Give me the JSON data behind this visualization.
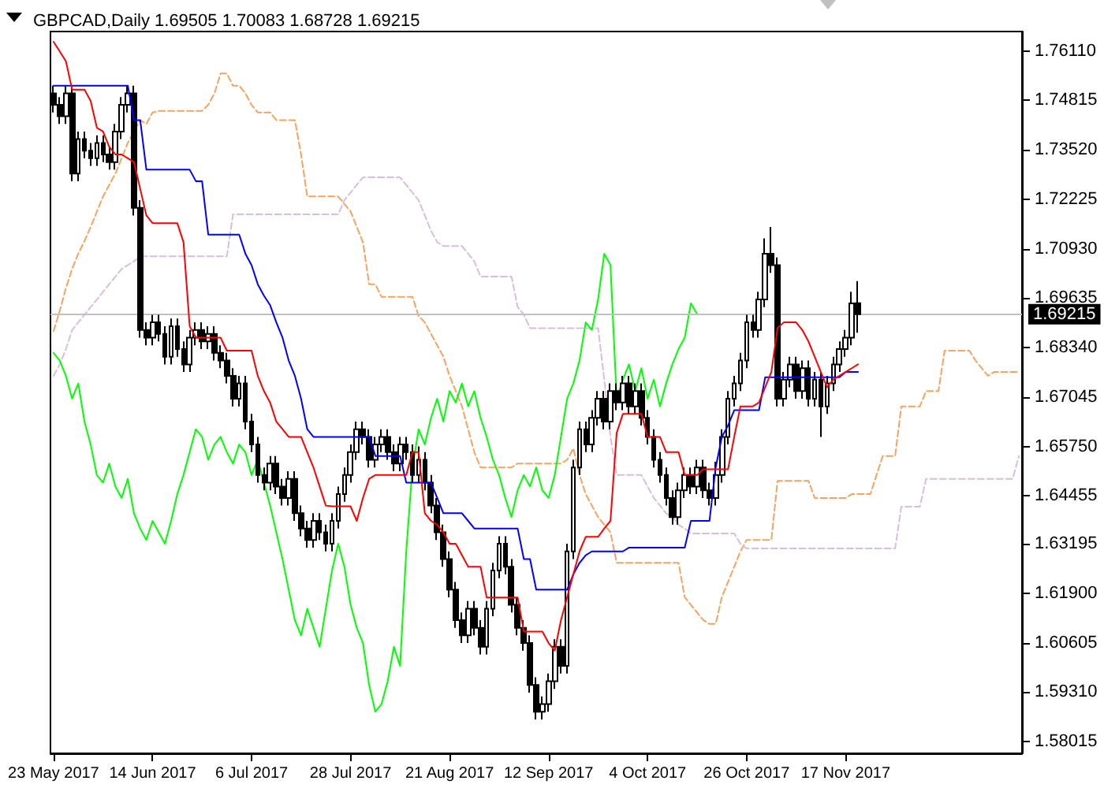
{
  "chart_data": {
    "type": "candlestick",
    "title": "GBPCAD,Daily 1.69505 1.70083 1.68728 1.69215",
    "categories": [
      "23 May 2017",
      null,
      null,
      null,
      null,
      null,
      null,
      null,
      null,
      null,
      null,
      null,
      null,
      null,
      null,
      null,
      "14 Jun 2017",
      null,
      null,
      null,
      null,
      null,
      null,
      null,
      null,
      null,
      null,
      null,
      null,
      null,
      null,
      null,
      "6 Jul 2017",
      null,
      null,
      null,
      null,
      null,
      null,
      null,
      null,
      null,
      null,
      null,
      null,
      null,
      null,
      null,
      "28 Jul 2017",
      null,
      null,
      null,
      null,
      null,
      null,
      null,
      null,
      null,
      null,
      null,
      null,
      null,
      null,
      null,
      "21 Aug 2017",
      null,
      null,
      null,
      null,
      null,
      null,
      null,
      null,
      null,
      null,
      null,
      null,
      null,
      null,
      null,
      "12 Sep 2017",
      null,
      null,
      null,
      null,
      null,
      null,
      null,
      null,
      null,
      null,
      null,
      null,
      null,
      null,
      null,
      "4 Oct 2017",
      null,
      null,
      null,
      null,
      null,
      null,
      null,
      null,
      null,
      null,
      null,
      null,
      null,
      null,
      null,
      "26 Oct 2017",
      null,
      null,
      null,
      null,
      null,
      null,
      null,
      null,
      null,
      null,
      null,
      null,
      null,
      null,
      null,
      "17 Nov 2017",
      null,
      null,
      null,
      null,
      null,
      null,
      null,
      null,
      null,
      null,
      null,
      null,
      null,
      null,
      null,
      null,
      null,
      null,
      null,
      null,
      null,
      null,
      null,
      null,
      null,
      null,
      null,
      null
    ],
    "ylim": [
      1.5771,
      1.7662
    ],
    "yticks": [
      1.58015,
      {
        "value": 1.5931,
        "label": "1.59310"
      },
      1.60605,
      {
        "value": 1.619,
        "label": "1.61900"
      },
      1.63195,
      1.64455,
      {
        "value": 1.6575,
        "label": "1.65750"
      },
      1.67045,
      {
        "value": 1.6834,
        "label": "1.68340"
      },
      1.69635,
      {
        "value": 1.7093,
        "label": "1.70930"
      },
      1.72225,
      {
        "value": 1.7352,
        "label": "1.73520"
      },
      1.74815,
      {
        "value": 1.7611,
        "label": "1.76110"
      }
    ],
    "grid": false,
    "marker": "none",
    "ref_lines": [
      {
        "axis": "y",
        "value": 1.69215,
        "label": "1.69215",
        "color": "#c0c0c0"
      }
    ],
    "series": [
      {
        "type": "line",
        "color": "#f4a460",
        "line_style": "dashed",
        "values": [
          1.6877,
          1.693,
          1.699,
          1.704,
          1.708,
          1.7113,
          1.715,
          1.719,
          1.723,
          1.726,
          1.729,
          1.733,
          1.737,
          1.74,
          1.743,
          1.742,
          1.745,
          1.7454,
          1.7454,
          1.7454,
          1.7454,
          1.7454,
          1.7454,
          1.7454,
          1.7454,
          1.747,
          1.75,
          1.7552,
          1.7552,
          1.752,
          1.752,
          1.75,
          1.747,
          1.745,
          1.745,
          1.745,
          1.743,
          1.743,
          1.743,
          1.743,
          1.734,
          1.723,
          1.723,
          1.723,
          1.723,
          1.723,
          1.723,
          1.721,
          1.7191,
          1.715,
          1.711,
          1.7,
          1.7,
          1.6967,
          1.6967,
          1.6967,
          1.6967,
          1.6967,
          1.6967,
          1.6916,
          1.69,
          1.687,
          1.684,
          1.681,
          1.676,
          1.672,
          1.668,
          1.662,
          1.656,
          1.652,
          1.652,
          1.652,
          1.652,
          1.652,
          1.652,
          1.653,
          1.653,
          1.653,
          1.653,
          1.653,
          1.653,
          1.653,
          1.653,
          1.654,
          1.657,
          1.65,
          1.645,
          1.642,
          1.639,
          1.637,
          1.635,
          1.627,
          1.627,
          1.627,
          1.627,
          1.627,
          1.627,
          1.627,
          1.627,
          1.627,
          1.627,
          1.627,
          1.618,
          1.616,
          1.614,
          1.612,
          1.611,
          1.611,
          1.618,
          1.622,
          1.626,
          1.63,
          1.633,
          1.633,
          1.633,
          1.633,
          1.633,
          1.6485,
          1.6485,
          1.6485,
          1.6485,
          1.6485,
          1.6485,
          1.644,
          1.644,
          1.644,
          1.644,
          1.644,
          1.644,
          1.645,
          1.645,
          1.645,
          1.645,
          1.65,
          1.655,
          1.655,
          1.655,
          1.668,
          1.668,
          1.668,
          1.668,
          1.672,
          1.672,
          1.672,
          1.6826,
          1.6826,
          1.6826,
          1.6826,
          1.6826,
          1.68,
          1.678,
          1.676,
          1.677,
          1.677,
          1.677,
          1.677,
          1.677
        ]
      },
      {
        "type": "line",
        "color": "#d8bfd8",
        "line_style": "dashed",
        "values": [
          1.676,
          1.679,
          1.683,
          1.688,
          1.69,
          1.692,
          1.694,
          1.696,
          1.698,
          1.7,
          1.702,
          1.704,
          1.705,
          1.706,
          1.7073,
          1.7073,
          1.7073,
          1.7073,
          1.7073,
          1.7073,
          1.7073,
          1.7073,
          1.7073,
          1.7073,
          1.7073,
          1.7073,
          1.7073,
          1.7073,
          1.7073,
          1.7183,
          1.7183,
          1.7183,
          1.7183,
          1.7183,
          1.7183,
          1.7183,
          1.7183,
          1.7183,
          1.7183,
          1.7183,
          1.7183,
          1.7183,
          1.7183,
          1.7183,
          1.7183,
          1.7183,
          1.7183,
          1.722,
          1.724,
          1.726,
          1.728,
          1.728,
          1.728,
          1.728,
          1.728,
          1.728,
          1.728,
          1.726,
          1.724,
          1.722,
          1.718,
          1.714,
          1.711,
          1.71,
          1.71,
          1.71,
          1.71,
          1.708,
          1.706,
          1.702,
          1.702,
          1.702,
          1.702,
          1.702,
          1.702,
          1.694,
          1.692,
          1.6885,
          1.6885,
          1.6885,
          1.6885,
          1.6885,
          1.6885,
          1.6885,
          1.6885,
          1.6885,
          1.6885,
          1.6885,
          1.6885,
          1.675,
          1.66,
          1.65,
          1.65,
          1.65,
          1.65,
          1.65,
          1.647,
          1.644,
          1.642,
          1.64,
          1.639,
          1.637,
          1.636,
          1.6347,
          1.6347,
          1.6347,
          1.6347,
          1.6347,
          1.6347,
          1.6347,
          1.6347,
          1.632,
          1.6308,
          1.6308,
          1.6308,
          1.6308,
          1.6308,
          1.6308,
          1.6308,
          1.6308,
          1.6308,
          1.6308,
          1.6308,
          1.6308,
          1.6308,
          1.6308,
          1.6308,
          1.6308,
          1.6308,
          1.6308,
          1.6308,
          1.6308,
          1.6308,
          1.6308,
          1.6308,
          1.6308,
          1.6308,
          1.6417,
          1.6417,
          1.6417,
          1.6417,
          1.649,
          1.649,
          1.649,
          1.649,
          1.649,
          1.649,
          1.649,
          1.649,
          1.649,
          1.649,
          1.649,
          1.649,
          1.649,
          1.649,
          1.649,
          1.655
        ]
      },
      {
        "type": "line",
        "color": "#00ff00",
        "line_style": "solid",
        "values": [
          1.682,
          1.68,
          1.676,
          1.67,
          1.674,
          1.664,
          1.658,
          1.65,
          1.648,
          1.653,
          1.647,
          1.644,
          1.649,
          1.64,
          1.636,
          1.633,
          1.638,
          1.635,
          1.632,
          1.638,
          1.645,
          1.65,
          1.656,
          1.662,
          1.66,
          1.654,
          1.658,
          1.66,
          1.656,
          1.653,
          1.658,
          1.656,
          1.65,
          1.654,
          1.648,
          1.642,
          1.635,
          1.628,
          1.62,
          1.612,
          1.608,
          1.615,
          1.61,
          1.605,
          1.615,
          1.625,
          1.632,
          1.626,
          1.616,
          1.61,
          1.606,
          1.595,
          1.588,
          1.59,
          1.596,
          1.605,
          1.6,
          1.63,
          1.652,
          1.662,
          1.658,
          1.665,
          1.67,
          1.664,
          1.672,
          1.669,
          1.674,
          1.668,
          1.672,
          1.665,
          1.66,
          1.654,
          1.65,
          1.644,
          1.639,
          1.646,
          1.65,
          1.647,
          1.652,
          1.646,
          1.644,
          1.65,
          1.66,
          1.67,
          1.674,
          1.68,
          1.69,
          1.688,
          1.696,
          1.708,
          1.705,
          1.67,
          1.675,
          1.679,
          1.672,
          1.678,
          1.67,
          1.675,
          1.668,
          1.674,
          1.679,
          1.683,
          1.686,
          1.695,
          1.6922,
          null,
          null,
          null,
          null,
          null,
          null,
          null,
          null,
          null,
          null,
          null,
          null,
          null,
          null,
          null,
          null,
          null,
          null,
          null,
          null,
          null,
          null,
          null,
          null,
          null,
          null,
          null,
          null,
          null,
          null,
          null,
          null,
          null,
          null,
          null,
          null,
          null,
          null,
          null,
          null,
          null,
          null,
          null,
          null,
          null,
          null,
          null,
          null,
          null,
          null,
          null,
          null
        ]
      },
      {
        "color": "#000000",
        "ohlc": [
          [
            1.75,
            1.752,
            1.745,
            1.747
          ],
          [
            1.747,
            1.749,
            1.742,
            1.744
          ],
          [
            1.744,
            1.752,
            1.742,
            1.75
          ],
          [
            1.75,
            1.752,
            1.727,
            1.729
          ],
          [
            1.729,
            1.74,
            1.727,
            1.738
          ],
          [
            1.738,
            1.74,
            1.733,
            1.735
          ],
          [
            1.735,
            1.737,
            1.731,
            1.733
          ],
          [
            1.733,
            1.739,
            1.731,
            1.737
          ],
          [
            1.737,
            1.739,
            1.732,
            1.734
          ],
          [
            1.734,
            1.736,
            1.73,
            1.732
          ],
          [
            1.732,
            1.742,
            1.73,
            1.74
          ],
          [
            1.74,
            1.749,
            1.738,
            1.747
          ],
          [
            1.747,
            1.752,
            1.745,
            1.75
          ],
          [
            1.75,
            1.752,
            1.718,
            1.72
          ],
          [
            1.72,
            1.722,
            1.686,
            1.688
          ],
          [
            1.688,
            1.69,
            1.684,
            1.686
          ],
          [
            1.686,
            1.692,
            1.684,
            1.69
          ],
          [
            1.69,
            1.692,
            1.685,
            1.687
          ],
          [
            1.687,
            1.689,
            1.679,
            1.681
          ],
          [
            1.681,
            1.691,
            1.679,
            1.689
          ],
          [
            1.689,
            1.691,
            1.681,
            1.683
          ],
          [
            1.683,
            1.685,
            1.677,
            1.679
          ],
          [
            1.679,
            1.688,
            1.677,
            1.686
          ],
          [
            1.686,
            1.69,
            1.684,
            1.688
          ],
          [
            1.688,
            1.69,
            1.683,
            1.685
          ],
          [
            1.685,
            1.689,
            1.683,
            1.687
          ],
          [
            1.687,
            1.689,
            1.68,
            1.682
          ],
          [
            1.682,
            1.684,
            1.678,
            1.68
          ],
          [
            1.68,
            1.682,
            1.674,
            1.676
          ],
          [
            1.676,
            1.678,
            1.668,
            1.67
          ],
          [
            1.67,
            1.676,
            1.668,
            1.674
          ],
          [
            1.674,
            1.676,
            1.662,
            1.664
          ],
          [
            1.664,
            1.666,
            1.656,
            1.658
          ],
          [
            1.658,
            1.66,
            1.648,
            1.65
          ],
          [
            1.65,
            1.652,
            1.646,
            1.648
          ],
          [
            1.648,
            1.655,
            1.646,
            1.653
          ],
          [
            1.653,
            1.655,
            1.645,
            1.647
          ],
          [
            1.647,
            1.649,
            1.642,
            1.644
          ],
          [
            1.644,
            1.651,
            1.642,
            1.649
          ],
          [
            1.649,
            1.651,
            1.638,
            1.64
          ],
          [
            1.64,
            1.642,
            1.634,
            1.636
          ],
          [
            1.636,
            1.638,
            1.631,
            1.633
          ],
          [
            1.633,
            1.64,
            1.631,
            1.638
          ],
          [
            1.638,
            1.64,
            1.633,
            1.635
          ],
          [
            1.635,
            1.637,
            1.63,
            1.632
          ],
          [
            1.632,
            1.64,
            1.63,
            1.638
          ],
          [
            1.638,
            1.647,
            1.636,
            1.645
          ],
          [
            1.645,
            1.652,
            1.643,
            1.65
          ],
          [
            1.65,
            1.658,
            1.648,
            1.656
          ],
          [
            1.656,
            1.664,
            1.654,
            1.662
          ],
          [
            1.662,
            1.664,
            1.658,
            1.66
          ],
          [
            1.66,
            1.662,
            1.652,
            1.654
          ],
          [
            1.654,
            1.66,
            1.652,
            1.658
          ],
          [
            1.658,
            1.662,
            1.656,
            1.66
          ],
          [
            1.66,
            1.662,
            1.654,
            1.656
          ],
          [
            1.656,
            1.658,
            1.651,
            1.653
          ],
          [
            1.653,
            1.66,
            1.651,
            1.658
          ],
          [
            1.658,
            1.66,
            1.654,
            1.656
          ],
          [
            1.656,
            1.658,
            1.648,
            1.65
          ],
          [
            1.65,
            1.6575,
            1.648,
            1.654
          ],
          [
            1.654,
            1.656,
            1.646,
            1.648
          ],
          [
            1.648,
            1.65,
            1.64,
            1.642
          ],
          [
            1.642,
            1.644,
            1.633,
            1.635
          ],
          [
            1.635,
            1.637,
            1.626,
            1.628
          ],
          [
            1.628,
            1.63,
            1.618,
            1.62
          ],
          [
            1.62,
            1.622,
            1.61,
            1.612
          ],
          [
            1.612,
            1.614,
            1.606,
            1.608
          ],
          [
            1.608,
            1.617,
            1.606,
            1.615
          ],
          [
            1.615,
            1.617,
            1.608,
            1.61
          ],
          [
            1.61,
            1.612,
            1.603,
            1.605
          ],
          [
            1.605,
            1.617,
            1.603,
            1.615
          ],
          [
            1.615,
            1.627,
            1.613,
            1.625
          ],
          [
            1.625,
            1.634,
            1.623,
            1.632
          ],
          [
            1.632,
            1.634,
            1.624,
            1.626
          ],
          [
            1.626,
            1.628,
            1.614,
            1.616
          ],
          [
            1.616,
            1.618,
            1.608,
            1.61
          ],
          [
            1.61,
            1.612,
            1.604,
            1.606
          ],
          [
            1.606,
            1.608,
            1.593,
            1.595
          ],
          [
            1.595,
            1.597,
            1.586,
            1.588
          ],
          [
            1.588,
            1.592,
            1.586,
            1.59
          ],
          [
            1.59,
            1.598,
            1.588,
            1.596
          ],
          [
            1.596,
            1.607,
            1.594,
            1.605
          ],
          [
            1.605,
            1.607,
            1.598,
            1.6
          ],
          [
            1.6,
            1.632,
            1.598,
            1.63
          ],
          [
            1.63,
            1.654,
            1.628,
            1.652
          ],
          [
            1.652,
            1.664,
            1.65,
            1.662
          ],
          [
            1.662,
            1.664,
            1.656,
            1.658
          ],
          [
            1.658,
            1.667,
            1.656,
            1.665
          ],
          [
            1.665,
            1.672,
            1.663,
            1.67
          ],
          [
            1.67,
            1.672,
            1.662,
            1.664
          ],
          [
            1.664,
            1.674,
            1.662,
            1.672
          ],
          [
            1.672,
            1.674,
            1.667,
            1.669
          ],
          [
            1.669,
            1.676,
            1.667,
            1.674
          ],
          [
            1.674,
            1.676,
            1.666,
            1.668
          ],
          [
            1.668,
            1.674,
            1.666,
            1.672
          ],
          [
            1.672,
            1.674,
            1.663,
            1.665
          ],
          [
            1.665,
            1.667,
            1.658,
            1.66
          ],
          [
            1.66,
            1.662,
            1.652,
            1.654
          ],
          [
            1.654,
            1.656,
            1.648,
            1.65
          ],
          [
            1.65,
            1.652,
            1.642,
            1.644
          ],
          [
            1.644,
            1.646,
            1.637,
            1.639
          ],
          [
            1.639,
            1.648,
            1.637,
            1.646
          ],
          [
            1.646,
            1.652,
            1.644,
            1.65
          ],
          [
            1.65,
            1.652,
            1.645,
            1.647
          ],
          [
            1.647,
            1.654,
            1.645,
            1.652
          ],
          [
            1.652,
            1.654,
            1.644,
            1.646
          ],
          [
            1.646,
            1.648,
            1.642,
            1.644
          ],
          [
            1.644,
            1.6535,
            1.642,
            1.65
          ],
          [
            1.65,
            1.662,
            1.648,
            1.66
          ],
          [
            1.66,
            1.672,
            1.658,
            1.67
          ],
          [
            1.67,
            1.676,
            1.668,
            1.674
          ],
          [
            1.674,
            1.682,
            1.672,
            1.68
          ],
          [
            1.68,
            1.692,
            1.678,
            1.69
          ],
          [
            1.69,
            1.692,
            1.686,
            1.688
          ],
          [
            1.688,
            1.698,
            1.686,
            1.696
          ],
          [
            1.696,
            1.712,
            1.694,
            1.708
          ],
          [
            1.708,
            1.715,
            1.703,
            1.705
          ],
          [
            1.705,
            1.707,
            1.668,
            1.67
          ],
          [
            1.67,
            1.677,
            1.668,
            1.675
          ],
          [
            1.675,
            1.681,
            1.673,
            1.679
          ],
          [
            1.679,
            1.681,
            1.67,
            1.672
          ],
          [
            1.672,
            1.68,
            1.67,
            1.678
          ],
          [
            1.678,
            1.68,
            1.668,
            1.67
          ],
          [
            1.67,
            1.677,
            1.668,
            1.675
          ],
          [
            1.675,
            1.677,
            1.66,
            1.668
          ],
          [
            1.668,
            1.676,
            1.666,
            1.674
          ],
          [
            1.674,
            1.681,
            1.672,
            1.679
          ],
          [
            1.679,
            1.685,
            1.677,
            1.683
          ],
          [
            1.683,
            1.688,
            1.681,
            1.686
          ],
          [
            1.686,
            1.698,
            1.684,
            1.695
          ],
          [
            1.69505,
            1.70083,
            1.68728,
            1.69215
          ],
          null,
          null,
          null,
          null,
          null,
          null,
          null,
          null,
          null,
          null,
          null,
          null,
          null,
          null,
          null,
          null,
          null,
          null,
          null,
          null,
          null,
          null,
          null,
          null,
          null,
          null
        ]
      },
      {
        "type": "line",
        "color": "#0000ff",
        "line_style": "solid",
        "values": [
          1.752,
          1.752,
          1.752,
          1.752,
          1.752,
          1.752,
          1.752,
          1.752,
          1.752,
          1.752,
          1.752,
          1.752,
          1.752,
          1.743,
          1.743,
          1.73,
          1.73,
          1.73,
          1.73,
          1.73,
          1.73,
          1.73,
          1.73,
          1.727,
          1.727,
          1.713,
          1.713,
          1.713,
          1.713,
          1.713,
          1.713,
          1.708,
          1.705,
          1.7,
          1.697,
          1.6945,
          1.69,
          1.686,
          1.68,
          1.676,
          1.67,
          1.662,
          1.66,
          1.66,
          1.66,
          1.66,
          1.66,
          1.66,
          1.66,
          1.66,
          1.66,
          1.66,
          1.655,
          1.655,
          1.655,
          1.655,
          1.655,
          1.648,
          1.648,
          1.648,
          1.648,
          1.648,
          1.644,
          1.64,
          1.64,
          1.64,
          1.64,
          1.638,
          1.636,
          1.636,
          1.636,
          1.636,
          1.636,
          1.636,
          1.636,
          1.636,
          1.628,
          1.628,
          1.62,
          1.62,
          1.62,
          1.62,
          1.62,
          1.62,
          1.624,
          1.627,
          1.629,
          1.63,
          1.63,
          1.63,
          1.63,
          1.63,
          1.63,
          1.631,
          1.631,
          1.631,
          1.631,
          1.631,
          1.631,
          1.631,
          1.631,
          1.631,
          1.631,
          1.638,
          1.638,
          1.638,
          1.638,
          1.652,
          1.66,
          1.663,
          1.667,
          1.667,
          1.667,
          1.667,
          1.667,
          1.6756,
          1.6756,
          1.6756,
          1.6756,
          1.6756,
          1.6756,
          1.6756,
          1.6756,
          1.6756,
          1.6756,
          1.6756,
          1.6756,
          1.6756,
          1.677,
          1.677,
          1.677,
          null,
          null,
          null,
          null,
          null,
          null,
          null,
          null,
          null,
          null,
          null,
          null,
          null,
          null,
          null,
          null,
          null,
          null,
          null,
          null,
          null,
          null,
          null,
          null,
          null,
          null
        ]
      },
      {
        "type": "line",
        "color": "#ff0000",
        "line_style": "solid",
        "values": [
          1.7635,
          1.761,
          1.7584,
          1.751,
          1.751,
          1.751,
          1.748,
          1.741,
          1.74,
          1.736,
          1.734,
          1.734,
          1.733,
          1.732,
          1.725,
          1.718,
          1.716,
          1.716,
          1.716,
          1.716,
          1.716,
          1.711,
          1.689,
          1.686,
          1.686,
          1.686,
          1.686,
          1.686,
          1.6826,
          1.6826,
          1.6826,
          1.6826,
          1.6826,
          1.676,
          1.672,
          1.669,
          1.664,
          1.662,
          1.66,
          1.66,
          1.66,
          1.656,
          1.652,
          1.647,
          1.642,
          1.6418,
          1.6418,
          1.6418,
          1.6418,
          1.638,
          1.644,
          1.649,
          1.65,
          1.65,
          1.65,
          1.65,
          1.65,
          1.65,
          1.656,
          1.656,
          1.64,
          1.638,
          1.637,
          1.635,
          1.632,
          1.632,
          1.629,
          1.626,
          1.626,
          1.626,
          1.6179,
          1.6179,
          1.6179,
          1.6179,
          1.6179,
          1.6179,
          1.609,
          1.609,
          1.609,
          1.609,
          1.606,
          1.604,
          1.612,
          1.618,
          1.624,
          1.63,
          1.6338,
          1.6338,
          1.6338,
          1.636,
          1.638,
          1.661,
          1.666,
          1.666,
          1.666,
          1.666,
          1.66,
          1.66,
          1.66,
          1.656,
          1.656,
          1.656,
          1.65,
          1.65,
          1.65,
          1.6515,
          1.6515,
          1.6515,
          1.6515,
          1.6515,
          1.66,
          1.668,
          1.668,
          1.668,
          1.669,
          1.673,
          1.677,
          1.6885,
          1.69,
          1.69,
          1.69,
          1.688,
          1.685,
          1.681,
          1.677,
          1.673,
          1.675,
          1.676,
          1.677,
          1.678,
          1.679,
          null,
          null,
          null,
          null,
          null,
          null,
          null,
          null,
          null,
          null,
          null,
          null,
          null,
          null,
          null,
          null,
          null,
          null,
          null,
          null,
          null,
          null,
          null,
          null,
          null,
          null
        ]
      }
    ]
  }
}
